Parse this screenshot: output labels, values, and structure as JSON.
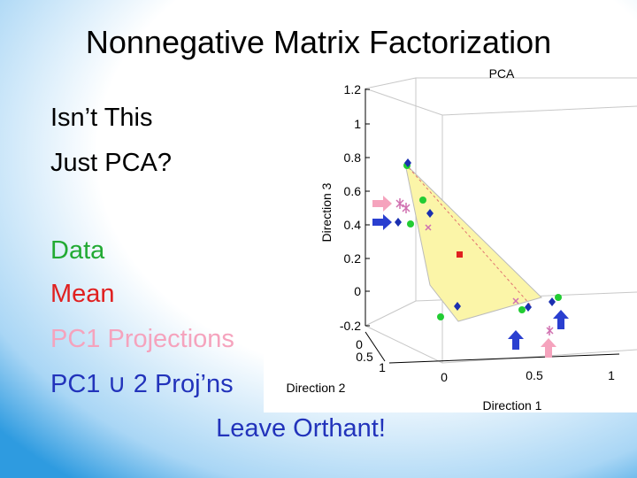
{
  "slide": {
    "title": "Nonnegative Matrix Factorization",
    "items": [
      {
        "text": "Isn’t This",
        "color": "#000000"
      },
      {
        "text": "Just PCA?",
        "color": "#000000"
      },
      {
        "text": "Data",
        "color": "#22aa33"
      },
      {
        "text": "Mean",
        "color": "#e02020"
      },
      {
        "text": "PC1 Projections",
        "color": "#f5a3bd"
      },
      {
        "text": "PC1 ∪ 2 Proj’ns",
        "color": "#2233bb"
      }
    ],
    "footer": {
      "text": "Leave Orthant!",
      "color": "#2233bb"
    },
    "figure": {
      "title": "PCA",
      "z_axis_label": "Direction 3",
      "y_axis_label": "Direction 2",
      "x_axis_label": "Direction 1",
      "z_ticks": [
        "1.2",
        "1",
        "0.8",
        "0.6",
        "0.4",
        "0.2",
        "0",
        "-0.2"
      ],
      "y_ticks": [
        "0",
        "0.5",
        "1"
      ],
      "x_ticks": [
        "0",
        "0.5",
        "1"
      ]
    }
  }
}
